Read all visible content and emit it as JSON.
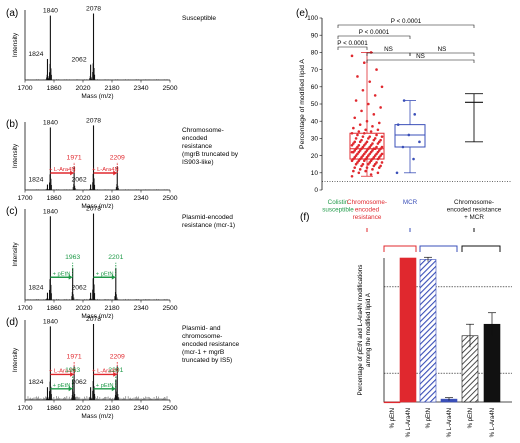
{
  "figure": {
    "panel_labels": [
      "(a)",
      "(b)",
      "(c)",
      "(d)",
      "(e)",
      "(f)"
    ],
    "colors": {
      "red": "#e0282e",
      "green": "#1f9a48",
      "blue": "#3a4fb8",
      "black": "#111111"
    }
  },
  "chart_data": [
    {
      "panel": "(a)",
      "type": "line",
      "title": "Susceptible",
      "xlabel": "Mass (m/z)",
      "ylabel": "Intensity",
      "xlim": [
        1700,
        2500
      ],
      "xticks": [
        "1700",
        "1860",
        "2020",
        "2180",
        "2340",
        "2500"
      ],
      "peaks": [
        {
          "x": 1824,
          "h": 0.3,
          "label": "1824"
        },
        {
          "x": 1840,
          "h": 0.92,
          "label": "1840"
        },
        {
          "x": 2062,
          "h": 0.22,
          "label": "2062"
        },
        {
          "x": 2078,
          "h": 0.95,
          "label": "2078"
        }
      ],
      "shifts": []
    },
    {
      "panel": "(b)",
      "type": "line",
      "title": "Chromosome-encoded resistance (mgrB truncated by IS903-like)",
      "title_lines": [
        "Chromosome-",
        "encoded",
        "resistance",
        "(mgrB truncated by",
        "IS903-like)"
      ],
      "xlabel": "Mass (m/z)",
      "ylabel": "Intensity",
      "xlim": [
        1700,
        2500
      ],
      "xticks": [
        "1700",
        "1860",
        "2020",
        "2180",
        "2340",
        "2500"
      ],
      "peaks": [
        {
          "x": 1824,
          "h": 0.08,
          "label": "1824"
        },
        {
          "x": 1840,
          "h": 0.92,
          "label": "1840"
        },
        {
          "x": 1971,
          "h": 0.35,
          "label": "1971"
        },
        {
          "x": 2062,
          "h": 0.08,
          "label": "2062"
        },
        {
          "x": 2078,
          "h": 0.95,
          "label": "2078"
        },
        {
          "x": 2209,
          "h": 0.35,
          "label": "2209"
        }
      ],
      "shifts": [
        {
          "from": 1840,
          "to": 1971,
          "label": "+ L-Ara4N",
          "color": "#e0282e",
          "level": 0.25
        },
        {
          "from": 2078,
          "to": 2209,
          "label": "+ L-Ara4N",
          "color": "#e0282e",
          "level": 0.25
        }
      ]
    },
    {
      "panel": "(c)",
      "type": "line",
      "title": "Plasmid-encoded resistance (mcr-1)",
      "title_lines": [
        "Plasmid-encoded",
        "resistance (mcr-1)"
      ],
      "xlabel": "Mass (m/z)",
      "ylabel": "Intensity",
      "xlim": [
        1700,
        2500
      ],
      "xticks": [
        "1700",
        "1860",
        "2020",
        "2180",
        "2340",
        "2500"
      ],
      "peaks": [
        {
          "x": 1824,
          "h": 0.08,
          "label": "1824"
        },
        {
          "x": 1840,
          "h": 0.92,
          "label": "1840"
        },
        {
          "x": 1963,
          "h": 0.35,
          "label": "1963"
        },
        {
          "x": 2062,
          "h": 0.08,
          "label": "2062"
        },
        {
          "x": 2078,
          "h": 0.95,
          "label": "2078"
        },
        {
          "x": 2201,
          "h": 0.35,
          "label": "2201"
        }
      ],
      "shifts": [
        {
          "from": 1840,
          "to": 1963,
          "label": "+ pEtN",
          "color": "#1f9a48",
          "level": 0.25
        },
        {
          "from": 2078,
          "to": 2201,
          "label": "+ pEtN",
          "color": "#1f9a48",
          "level": 0.25
        }
      ]
    },
    {
      "panel": "(d)",
      "type": "line",
      "title": "Plasmid- and chromosome-encoded resistance (mcr-1 + mgrB truncated by IS5)",
      "title_lines": [
        "Plasmid- and",
        "chromosome-",
        "encoded resistance",
        "(mcr-1 + mgrB",
        "truncated by IS5)"
      ],
      "xlabel": "Mass (m/z)",
      "ylabel": "Intensity",
      "xlim": [
        1700,
        2500
      ],
      "xticks": [
        "1700",
        "1860",
        "2020",
        "2180",
        "2340",
        "2500"
      ],
      "peaks": [
        {
          "x": 1824,
          "h": 0.16,
          "label": "1824"
        },
        {
          "x": 1840,
          "h": 0.92,
          "label": "1840"
        },
        {
          "x": 1963,
          "h": 0.25,
          "label": "1963"
        },
        {
          "x": 1971,
          "h": 0.42,
          "label": "1971"
        },
        {
          "x": 2062,
          "h": 0.16,
          "label": "2062"
        },
        {
          "x": 2078,
          "h": 0.95,
          "label": "2078"
        },
        {
          "x": 2201,
          "h": 0.25,
          "label": "2201"
        },
        {
          "x": 2209,
          "h": 0.42,
          "label": "2209"
        }
      ],
      "shifts": [
        {
          "from": 1840,
          "to": 1971,
          "label": "+ L-Ara4N",
          "color": "#e0282e",
          "level": 0.32
        },
        {
          "from": 1840,
          "to": 1963,
          "label": "+ pEtN",
          "color": "#1f9a48",
          "level": 0.14
        },
        {
          "from": 2078,
          "to": 2209,
          "label": "+ L-Ara4N",
          "color": "#e0282e",
          "level": 0.32
        },
        {
          "from": 2078,
          "to": 2201,
          "label": "+ pEtN",
          "color": "#1f9a48",
          "level": 0.14
        }
      ]
    },
    {
      "panel": "(e)",
      "type": "scatter",
      "ylabel": "Percentage of modified lipid A",
      "ylim": [
        0,
        100
      ],
      "yticks": [
        "0",
        "10",
        "20",
        "30",
        "40",
        "50",
        "60",
        "70",
        "80",
        "90",
        "100"
      ],
      "threshold": 5,
      "groups": [
        {
          "label": "Colistin susceptible",
          "lines": [
            "Colistin",
            "susceptible"
          ],
          "color": "#1f9a48",
          "type": "none",
          "points": []
        },
        {
          "label": "Chromosome-encoded resistance",
          "lines": [
            "Chromosome-",
            "encoded",
            "resistance"
          ],
          "color": "#e0282e",
          "type": "box",
          "min": 8,
          "q1": 18,
          "median": 24,
          "q3": 33,
          "max": 80,
          "points": [
            8,
            9,
            10,
            10,
            11,
            11,
            12,
            12,
            13,
            13,
            13,
            14,
            14,
            14,
            15,
            15,
            15,
            15,
            16,
            16,
            16,
            16,
            17,
            17,
            17,
            17,
            18,
            18,
            18,
            18,
            18,
            19,
            19,
            19,
            19,
            19,
            20,
            20,
            20,
            20,
            20,
            21,
            21,
            21,
            21,
            21,
            22,
            22,
            22,
            22,
            22,
            22,
            23,
            23,
            23,
            23,
            23,
            24,
            24,
            24,
            24,
            24,
            24,
            25,
            25,
            25,
            25,
            25,
            26,
            26,
            26,
            26,
            27,
            27,
            27,
            27,
            28,
            28,
            28,
            28,
            29,
            29,
            29,
            30,
            30,
            30,
            31,
            31,
            31,
            32,
            32,
            33,
            33,
            34,
            34,
            35,
            35,
            36,
            37,
            38,
            39,
            40,
            42,
            44,
            46,
            48,
            50,
            52,
            55,
            58,
            60,
            63,
            66,
            70,
            74,
            78,
            80
          ]
        },
        {
          "label": "MCR",
          "lines": [
            "MCR"
          ],
          "color": "#3a4fb8",
          "type": "box",
          "min": 10,
          "q1": 25,
          "median": 32,
          "q3": 38,
          "max": 52,
          "points": [
            10,
            18,
            25,
            28,
            32,
            38,
            44,
            52
          ]
        },
        {
          "label": "Chromosome-encoded resistance + MCR",
          "lines": [
            "Chromosome-",
            "encoded resistance",
            "+ MCR"
          ],
          "color": "#111111",
          "type": "range",
          "min": 28,
          "median": 51,
          "max": 56,
          "points": []
        }
      ],
      "comparisons": [
        {
          "from": 0,
          "to": 1,
          "label": "P < 0.0001"
        },
        {
          "from": 0,
          "to": 2,
          "label": "P < 0.0001"
        },
        {
          "from": 0,
          "to": 3,
          "label": "P < 0.0001"
        },
        {
          "from": 1,
          "to": 2,
          "label": "NS"
        },
        {
          "from": 1,
          "to": 3,
          "label": "NS"
        },
        {
          "from": 2,
          "to": 3,
          "label": "NS"
        }
      ]
    },
    {
      "panel": "(f)",
      "type": "bar",
      "ylabel": "Percentage of pEtN and L-Ara4N modifications among the modified lipid A",
      "ylim": [
        0,
        100
      ],
      "reference_lines": [
        20,
        80
      ],
      "categories": [
        "% pEtN",
        "% L-Ara4N",
        "% pEtN",
        "% L-Ara4N",
        "% pEtN",
        "% L-Ara4N"
      ],
      "values": [
        0,
        100,
        99,
        2,
        46,
        54
      ],
      "errors": [
        0,
        0,
        1.5,
        1,
        8,
        8
      ],
      "bar_fills": [
        "#e0282e",
        "#e0282e",
        "hatch-blue",
        "#3a4fb8",
        "hatch-black",
        "#111111"
      ],
      "group_brackets": [
        {
          "from": 0,
          "to": 1,
          "color": "#e0282e"
        },
        {
          "from": 2,
          "to": 3,
          "color": "#3a4fb8"
        },
        {
          "from": 4,
          "to": 5,
          "color": "#111111"
        }
      ]
    }
  ]
}
